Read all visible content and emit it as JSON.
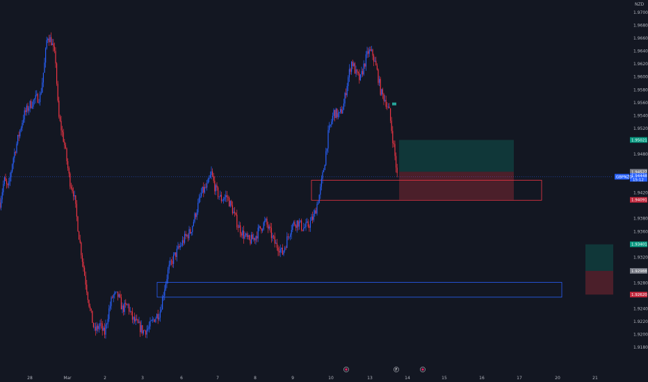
{
  "colors": {
    "background": "#131722",
    "up": "#2962ff",
    "down": "#f23645",
    "teal_tag": "#089981",
    "red_tag": "#c2283d",
    "gray_tag": "#787b86",
    "price_tag": "#2962ff"
  },
  "chart_data": {
    "type": "candlestick",
    "currency": "NZD",
    "ylim": [
      1.914,
      1.972
    ],
    "y_ticks": [
      {
        "value": 1.97,
        "label": "1.97000"
      },
      {
        "value": 1.968,
        "label": "1.96800"
      },
      {
        "value": 1.966,
        "label": "1.96600"
      },
      {
        "value": 1.964,
        "label": "1.96400"
      },
      {
        "value": 1.962,
        "label": "1.96200"
      },
      {
        "value": 1.96,
        "label": "1.96000"
      },
      {
        "value": 1.958,
        "label": "1.95800"
      },
      {
        "value": 1.956,
        "label": "1.95600"
      },
      {
        "value": 1.954,
        "label": "1.95400"
      },
      {
        "value": 1.952,
        "label": "1.95200"
      },
      {
        "value": 1.948,
        "label": "1.94800"
      },
      {
        "value": 1.942,
        "label": "1.94200"
      },
      {
        "value": 1.938,
        "label": "1.93800"
      },
      {
        "value": 1.936,
        "label": "1.93600"
      },
      {
        "value": 1.932,
        "label": "1.93200"
      },
      {
        "value": 1.928,
        "label": "1.92800"
      },
      {
        "value": 1.924,
        "label": "1.92400"
      },
      {
        "value": 1.922,
        "label": "1.92200"
      },
      {
        "value": 1.92,
        "label": "1.92000"
      },
      {
        "value": 1.918,
        "label": "1.91800"
      }
    ],
    "x_ticks": [
      {
        "label": "28",
        "t": 43
      },
      {
        "label": "Mar",
        "t": 97
      },
      {
        "label": "2",
        "t": 151
      },
      {
        "label": "3",
        "t": 205
      },
      {
        "label": "6",
        "t": 261
      },
      {
        "label": "7",
        "t": 313
      },
      {
        "label": "8",
        "t": 367
      },
      {
        "label": "9",
        "t": 421
      },
      {
        "label": "10",
        "t": 476
      },
      {
        "label": "13",
        "t": 532
      },
      {
        "label": "14",
        "t": 586
      },
      {
        "label": "15",
        "t": 639
      },
      {
        "label": "16",
        "t": 693
      },
      {
        "label": "17",
        "t": 747
      },
      {
        "label": "20",
        "t": 802
      },
      {
        "label": "21",
        "t": 856
      }
    ],
    "x_range": [
      0,
      882
    ],
    "event_markers": [
      {
        "t": 498,
        "kind": "flag"
      },
      {
        "t": 570,
        "kind": "F"
      },
      {
        "t": 608,
        "kind": "flag"
      }
    ],
    "anchors": [
      {
        "t": 0,
        "v": 1.9405
      },
      {
        "t": 6,
        "v": 1.944
      },
      {
        "t": 12,
        "v": 1.9425
      },
      {
        "t": 18,
        "v": 1.947
      },
      {
        "t": 26,
        "v": 1.9505
      },
      {
        "t": 34,
        "v": 1.954
      },
      {
        "t": 42,
        "v": 1.9555
      },
      {
        "t": 50,
        "v": 1.9565
      },
      {
        "t": 58,
        "v": 1.957
      },
      {
        "t": 64,
        "v": 1.962
      },
      {
        "t": 68,
        "v": 1.9665
      },
      {
        "t": 74,
        "v": 1.9655
      },
      {
        "t": 80,
        "v": 1.9625
      },
      {
        "t": 84,
        "v": 1.954
      },
      {
        "t": 92,
        "v": 1.95
      },
      {
        "t": 100,
        "v": 1.944
      },
      {
        "t": 106,
        "v": 1.942
      },
      {
        "t": 114,
        "v": 1.935
      },
      {
        "t": 122,
        "v": 1.929
      },
      {
        "t": 130,
        "v": 1.9235
      },
      {
        "t": 136,
        "v": 1.9205
      },
      {
        "t": 144,
        "v": 1.9215
      },
      {
        "t": 150,
        "v": 1.92
      },
      {
        "t": 156,
        "v": 1.9235
      },
      {
        "t": 162,
        "v": 1.926
      },
      {
        "t": 170,
        "v": 1.926
      },
      {
        "t": 176,
        "v": 1.924
      },
      {
        "t": 184,
        "v": 1.9245
      },
      {
        "t": 190,
        "v": 1.9225
      },
      {
        "t": 198,
        "v": 1.9215
      },
      {
        "t": 206,
        "v": 1.9205
      },
      {
        "t": 214,
        "v": 1.921
      },
      {
        "t": 222,
        "v": 1.9225
      },
      {
        "t": 230,
        "v": 1.9235
      },
      {
        "t": 236,
        "v": 1.927
      },
      {
        "t": 242,
        "v": 1.93
      },
      {
        "t": 250,
        "v": 1.932
      },
      {
        "t": 258,
        "v": 1.9335
      },
      {
        "t": 266,
        "v": 1.935
      },
      {
        "t": 274,
        "v": 1.936
      },
      {
        "t": 282,
        "v": 1.939
      },
      {
        "t": 290,
        "v": 1.942
      },
      {
        "t": 298,
        "v": 1.943
      },
      {
        "t": 304,
        "v": 1.945
      },
      {
        "t": 310,
        "v": 1.9425
      },
      {
        "t": 318,
        "v": 1.941
      },
      {
        "t": 326,
        "v": 1.9415
      },
      {
        "t": 334,
        "v": 1.9395
      },
      {
        "t": 342,
        "v": 1.937
      },
      {
        "t": 350,
        "v": 1.9355
      },
      {
        "t": 358,
        "v": 1.9345
      },
      {
        "t": 366,
        "v": 1.935
      },
      {
        "t": 374,
        "v": 1.9365
      },
      {
        "t": 382,
        "v": 1.9375
      },
      {
        "t": 388,
        "v": 1.936
      },
      {
        "t": 396,
        "v": 1.934
      },
      {
        "t": 402,
        "v": 1.9335
      },
      {
        "t": 406,
        "v": 1.9325
      },
      {
        "t": 412,
        "v": 1.9345
      },
      {
        "t": 420,
        "v": 1.937
      },
      {
        "t": 428,
        "v": 1.9375
      },
      {
        "t": 436,
        "v": 1.9365
      },
      {
        "t": 444,
        "v": 1.937
      },
      {
        "t": 452,
        "v": 1.9385
      },
      {
        "t": 460,
        "v": 1.942
      },
      {
        "t": 466,
        "v": 1.946
      },
      {
        "t": 472,
        "v": 1.951
      },
      {
        "t": 480,
        "v": 1.9545
      },
      {
        "t": 488,
        "v": 1.954
      },
      {
        "t": 494,
        "v": 1.9555
      },
      {
        "t": 500,
        "v": 1.9595
      },
      {
        "t": 506,
        "v": 1.9625
      },
      {
        "t": 512,
        "v": 1.9605
      },
      {
        "t": 518,
        "v": 1.9595
      },
      {
        "t": 524,
        "v": 1.962
      },
      {
        "t": 530,
        "v": 1.964
      },
      {
        "t": 536,
        "v": 1.9635
      },
      {
        "t": 542,
        "v": 1.961
      },
      {
        "t": 548,
        "v": 1.9575
      },
      {
        "t": 554,
        "v": 1.9565
      },
      {
        "t": 560,
        "v": 1.9545
      },
      {
        "t": 566,
        "v": 1.9495
      },
      {
        "t": 572,
        "v": 1.944
      }
    ],
    "last_price": 1.9445,
    "current_price_line": 1.9445,
    "zones": [
      {
        "kind": "demand-box",
        "t1": 448,
        "t2": 779,
        "top": 1.94395,
        "bottom": 1.94085,
        "color": "#f23645"
      },
      {
        "kind": "demand-box",
        "t1": 226,
        "t2": 808,
        "top": 1.9281,
        "bottom": 1.9258,
        "color": "#2962ff"
      }
    ],
    "positions": [
      {
        "kind": "long-position",
        "t1": 574,
        "t2": 739,
        "entry": 1.94527,
        "target": 1.95021,
        "stop": 1.94091
      },
      {
        "kind": "long-position",
        "t1": 842,
        "t2": 882,
        "entry": 1.92988,
        "target": 1.934,
        "stop": 1.9262
      }
    ],
    "price_tags": [
      {
        "value": 1.95021,
        "label": "1.95021",
        "color": "teal"
      },
      {
        "value": 1.94527,
        "label": "1.94527",
        "color": "gray"
      },
      {
        "value": 1.94091,
        "label": "1.94091",
        "color": "red"
      },
      {
        "value": 1.93401,
        "label": "1.93401",
        "color": "teal"
      },
      {
        "value": 1.92988,
        "label": "1.92988",
        "color": "gray"
      },
      {
        "value": 1.9262,
        "label": "1.92620",
        "color": "red"
      }
    ],
    "symbol_tag": {
      "label": "GBPNZD",
      "value": 1.9445
    },
    "last_price_tag": {
      "label": "1.94448",
      "sublabel": "15:12",
      "value": 1.9445
    }
  }
}
